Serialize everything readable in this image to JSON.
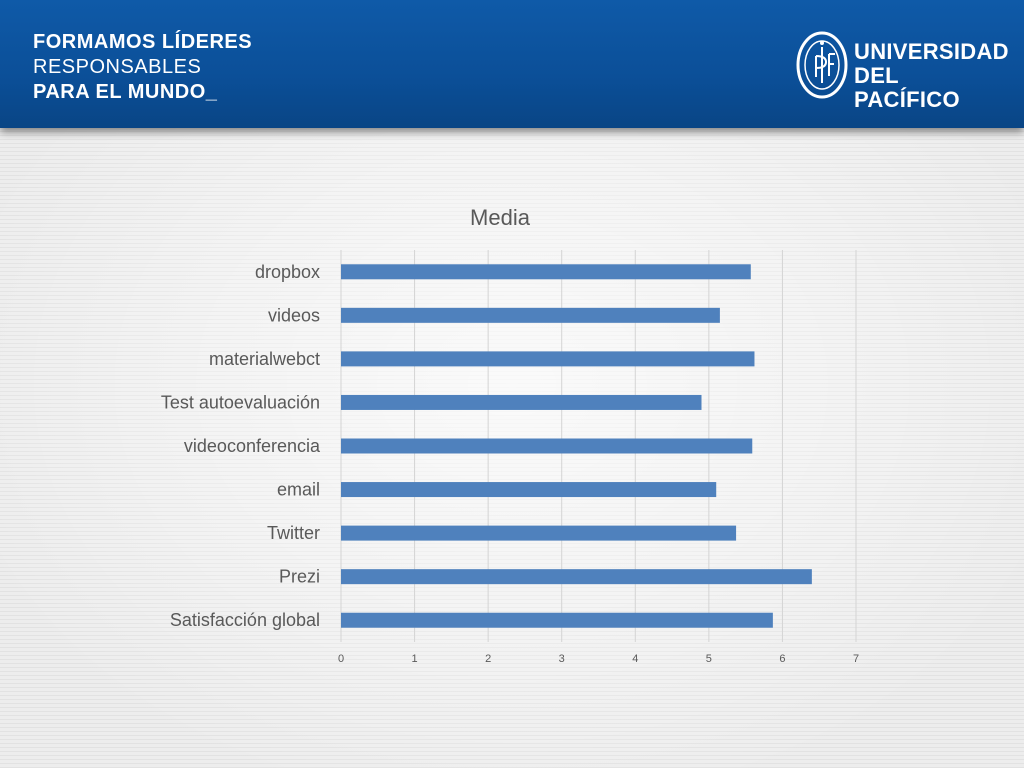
{
  "header": {
    "slogan": {
      "line1": "FORMAMOS LÍDERES",
      "line2": "RESPONSABLES",
      "line3": "PARA EL MUNDO_"
    },
    "logo": {
      "line1": "UNIVERSIDAD",
      "line2": "DEL PACÍFICO",
      "seal_icon": "university-seal-icon"
    }
  },
  "colors": {
    "header_blue": "#0b4f98",
    "bar_blue": "#4f81bd",
    "text_gray": "#595959"
  },
  "chart_data": {
    "type": "bar",
    "orientation": "horizontal",
    "title": "Media",
    "categories": [
      "dropbox",
      "videos",
      "materialwebct",
      "Test autoevaluación",
      "videoconferencia",
      "email",
      "Twitter",
      "Prezi",
      "Satisfacción global"
    ],
    "values": [
      5.57,
      5.15,
      5.62,
      4.9,
      5.59,
      5.1,
      5.37,
      6.4,
      5.87
    ],
    "xlim": [
      0,
      7
    ],
    "xticks": [
      "0",
      "1",
      "2",
      "3",
      "4",
      "5",
      "6",
      "7"
    ],
    "xlabel": "",
    "ylabel": "",
    "grid": "vertical",
    "legend": "none"
  }
}
